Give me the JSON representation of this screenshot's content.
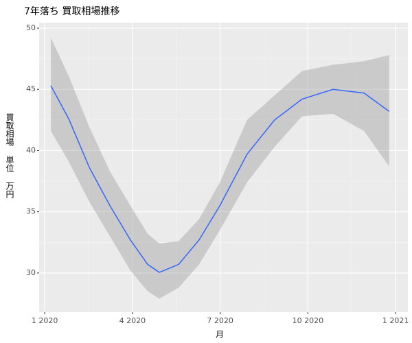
{
  "chart_data": {
    "type": "line",
    "title": "7年落ち 買取相場推移",
    "x_label": "月",
    "y_label": "買取相場 単位 万円",
    "x": [
      0.21,
      0.82,
      1.53,
      2.23,
      2.93,
      3.52,
      3.92,
      4.58,
      5.28,
      5.99,
      6.92,
      7.86,
      8.8,
      9.86,
      10.92,
      11.78
    ],
    "values": [
      45.3,
      42.6,
      38.6,
      35.5,
      32.7,
      30.7,
      30.05,
      30.7,
      32.7,
      35.5,
      39.7,
      42.5,
      44.2,
      45.0,
      44.7,
      43.2
    ],
    "lower": [
      41.6,
      39.1,
      35.8,
      33.0,
      30.2,
      28.5,
      27.9,
      28.8,
      30.7,
      33.5,
      37.4,
      40.3,
      42.8,
      43.0,
      41.6,
      38.7
    ],
    "upper": [
      49.2,
      46.1,
      41.9,
      38.3,
      35.5,
      33.2,
      32.4,
      32.6,
      34.4,
      37.4,
      42.5,
      44.5,
      46.5,
      47.0,
      47.3,
      47.8
    ],
    "color": "#3366ff",
    "band_color": "#999999",
    "xlim": [
      -0.19,
      12.42
    ],
    "ylim": [
      26.8,
      50.45
    ],
    "xticks": [
      {
        "value": 0,
        "label": "1 2020"
      },
      {
        "value": 3,
        "label": "4 2020"
      },
      {
        "value": 6,
        "label": "7 2020"
      },
      {
        "value": 9,
        "label": "10 2020"
      },
      {
        "value": 12,
        "label": "1 2021"
      }
    ],
    "yticks": [
      30,
      35,
      40,
      45,
      50
    ],
    "grid": true
  }
}
